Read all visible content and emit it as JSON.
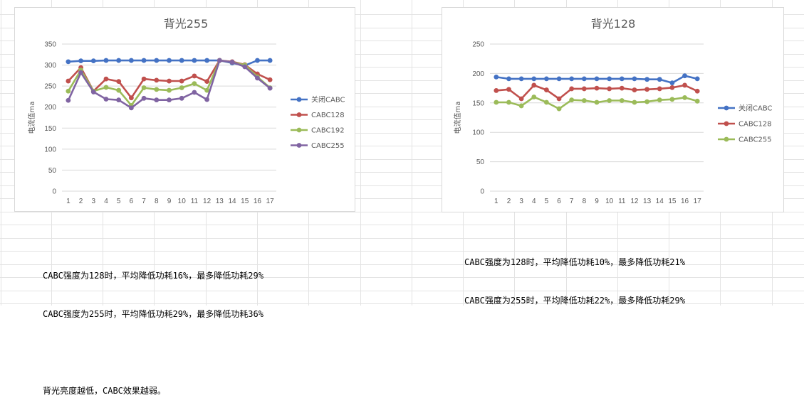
{
  "chart_data": [
    {
      "type": "line",
      "title": "背光255",
      "ylabel": "电流值ma",
      "xlabel": "",
      "ylim": [
        0,
        350
      ],
      "yticks": [
        0,
        50,
        100,
        150,
        200,
        250,
        300,
        350
      ],
      "grid": true,
      "legend": "right",
      "x": [
        1,
        2,
        3,
        4,
        5,
        6,
        7,
        8,
        9,
        10,
        11,
        12,
        13,
        14,
        15,
        16,
        17
      ],
      "series": [
        {
          "name": "关闭CABC",
          "color": "#4472c4",
          "values": [
            308,
            310,
            310,
            311,
            311,
            311,
            311,
            311,
            311,
            311,
            311,
            311,
            311,
            305,
            299,
            311,
            311
          ]
        },
        {
          "name": "CABC128",
          "color": "#c0504d",
          "values": [
            262,
            294,
            238,
            267,
            261,
            222,
            267,
            264,
            262,
            262,
            274,
            261,
            311,
            308,
            301,
            279,
            265
          ]
        },
        {
          "name": "CABC192",
          "color": "#9bbb59",
          "values": [
            238,
            288,
            238,
            247,
            240,
            204,
            246,
            242,
            240,
            246,
            256,
            240,
            311,
            307,
            300,
            272,
            246
          ]
        },
        {
          "name": "CABC255",
          "color": "#8064a2",
          "values": [
            216,
            282,
            236,
            219,
            217,
            198,
            221,
            217,
            217,
            221,
            235,
            218,
            311,
            307,
            296,
            269,
            245
          ]
        }
      ]
    },
    {
      "type": "line",
      "title": "背光128",
      "ylabel": "电流值ma",
      "xlabel": "",
      "ylim": [
        0,
        250
      ],
      "yticks": [
        0,
        50,
        100,
        150,
        200,
        250
      ],
      "grid": true,
      "legend": "right",
      "x": [
        1,
        2,
        3,
        4,
        5,
        6,
        7,
        8,
        9,
        10,
        11,
        12,
        13,
        14,
        15,
        16,
        17
      ],
      "series": [
        {
          "name": "关闭CABC",
          "color": "#4472c4",
          "values": [
            194,
            191,
            191,
            191,
            191,
            191,
            191,
            191,
            191,
            191,
            191,
            191,
            190,
            190,
            184,
            196,
            191
          ]
        },
        {
          "name": "CABC128",
          "color": "#c0504d",
          "values": [
            171,
            173,
            157,
            180,
            172,
            157,
            174,
            174,
            175,
            174,
            175,
            172,
            173,
            174,
            176,
            180,
            170
          ]
        },
        {
          "name": "CABC255",
          "color": "#9bbb59",
          "values": [
            151,
            151,
            145,
            160,
            151,
            140,
            155,
            154,
            151,
            154,
            154,
            151,
            152,
            155,
            156,
            159,
            153
          ]
        }
      ]
    }
  ],
  "notes_left": [
    "CABC强度为128时，平均降低功耗16%，最多降低功耗29%",
    "CABC强度为255时，平均降低功耗29%，最多降低功耗36%",
    "",
    "背光亮度越低，CABC效果越弱。"
  ],
  "notes_right": [
    "CABC强度为128时，平均降低功耗10%，最多降低功耗21%",
    "CABC强度为255时，平均降低功耗22%，最多降低功耗29%"
  ]
}
